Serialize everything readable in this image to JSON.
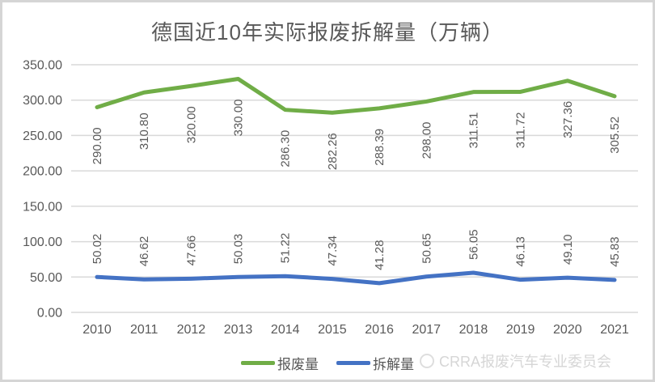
{
  "title": "德国近10年实际报废拆解量（万辆）",
  "watermark": {
    "text": "CRRA报废汽车专业委员会",
    "logo": "crra-circle-logo"
  },
  "colors": {
    "scrap_line_green": "#70AD47",
    "dismantle_line_blue": "#4472C4",
    "gridline_gray": "#D9D9D9",
    "text_gray": "#595959",
    "watermark_gray": "#D6D6D6",
    "frame_border_gray": "#D5D5D5"
  },
  "chart_data": {
    "type": "line",
    "title": "德国近10年实际报废拆解量（万辆）",
    "categories": [
      "2010",
      "2011",
      "2012",
      "2013",
      "2014",
      "2015",
      "2016",
      "2017",
      "2018",
      "2019",
      "2020",
      "2021"
    ],
    "series": [
      {
        "name": "报废量",
        "color": "#70AD47",
        "values": [
          290.0,
          310.8,
          320.0,
          330.0,
          286.3,
          282.26,
          288.39,
          298.0,
          311.51,
          311.72,
          327.36,
          305.52
        ],
        "label_position": "below"
      },
      {
        "name": "拆解量",
        "color": "#4472C4",
        "values": [
          50.02,
          46.62,
          47.66,
          50.03,
          51.22,
          47.34,
          41.28,
          50.65,
          56.05,
          46.13,
          49.1,
          45.83
        ],
        "label_position": "above"
      }
    ],
    "xlabel": "",
    "ylabel": "",
    "ylim": [
      0,
      350
    ],
    "ytick_step": 50,
    "ytick_labels": [
      "0.00",
      "50.00",
      "100.00",
      "150.00",
      "200.00",
      "250.00",
      "300.00",
      "350.00"
    ],
    "grid": true,
    "legend_position": "bottom",
    "data_label_rotation": -90,
    "data_label_decimals": 2
  }
}
